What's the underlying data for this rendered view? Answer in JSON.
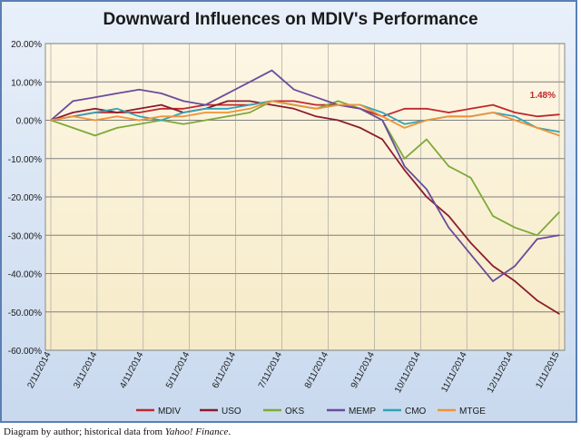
{
  "chart_data": {
    "type": "line",
    "title": "Downward Influences on MDIV's Performance",
    "xlabel": "",
    "ylabel": "",
    "ylim": [
      -0.6,
      0.2
    ],
    "y_ticks": [
      "20.00%",
      "10.00%",
      "0.00%",
      "-10.00%",
      "-20.00%",
      "-30.00%",
      "-40.00%",
      "-50.00%",
      "-60.00%"
    ],
    "y_tick_values": [
      0.2,
      0.1,
      0.0,
      -0.1,
      -0.2,
      -0.3,
      -0.4,
      -0.5,
      -0.6
    ],
    "x_ticks": [
      "2/11/2014",
      "3/11/2014",
      "4/11/2014",
      "5/11/2014",
      "6/11/2014",
      "7/11/2014",
      "8/11/2014",
      "9/11/2014",
      "10/11/2014",
      "11/11/2014",
      "12/11/2014",
      "1/11/2015"
    ],
    "grid": true,
    "legend_position": "bottom",
    "annotation": {
      "text": "1.48%",
      "series": "MDIV",
      "color": "#c0282d"
    },
    "x": [
      "2/11/2014",
      "2/25/2014",
      "3/11/2014",
      "3/25/2014",
      "4/11/2014",
      "4/25/2014",
      "5/11/2014",
      "5/25/2014",
      "6/11/2014",
      "6/25/2014",
      "7/11/2014",
      "7/25/2014",
      "8/11/2014",
      "8/25/2014",
      "9/11/2014",
      "9/25/2014",
      "10/11/2014",
      "10/25/2014",
      "11/11/2014",
      "11/25/2014",
      "12/11/2014",
      "12/25/2014",
      "1/11/2015",
      "1/25/2015"
    ],
    "series": [
      {
        "name": "MDIV",
        "color": "#c0282d",
        "values": [
          0.0,
          0.01,
          0.02,
          0.02,
          0.02,
          0.03,
          0.03,
          0.04,
          0.04,
          0.04,
          0.05,
          0.05,
          0.04,
          0.04,
          0.03,
          0.01,
          0.03,
          0.03,
          0.02,
          0.03,
          0.04,
          0.02,
          0.01,
          0.0148
        ]
      },
      {
        "name": "USO",
        "color": "#8b1c2e",
        "values": [
          0.0,
          0.02,
          0.03,
          0.02,
          0.03,
          0.04,
          0.02,
          0.03,
          0.05,
          0.05,
          0.04,
          0.03,
          0.01,
          0.0,
          -0.02,
          -0.05,
          -0.13,
          -0.2,
          -0.25,
          -0.32,
          -0.38,
          -0.42,
          -0.47,
          -0.505
        ]
      },
      {
        "name": "OKS",
        "color": "#7daa3a",
        "values": [
          0.0,
          -0.02,
          -0.04,
          -0.02,
          -0.01,
          0.0,
          -0.01,
          0.0,
          0.01,
          0.02,
          0.05,
          0.04,
          0.03,
          0.05,
          0.03,
          0.0,
          -0.1,
          -0.05,
          -0.12,
          -0.15,
          -0.25,
          -0.28,
          -0.3,
          -0.24
        ]
      },
      {
        "name": "MEMP",
        "color": "#6a4c9c",
        "values": [
          0.0,
          0.05,
          0.06,
          0.07,
          0.08,
          0.07,
          0.05,
          0.04,
          0.07,
          0.1,
          0.13,
          0.08,
          0.06,
          0.04,
          0.03,
          0.0,
          -0.12,
          -0.18,
          -0.28,
          -0.35,
          -0.42,
          -0.38,
          -0.31,
          -0.3
        ]
      },
      {
        "name": "CMO",
        "color": "#31a3b7",
        "values": [
          0.0,
          0.01,
          0.02,
          0.03,
          0.01,
          0.0,
          0.02,
          0.03,
          0.03,
          0.04,
          0.05,
          0.04,
          0.03,
          0.04,
          0.04,
          0.02,
          -0.01,
          0.0,
          0.01,
          0.01,
          0.02,
          0.01,
          -0.02,
          -0.03
        ]
      },
      {
        "name": "MTGE",
        "color": "#f0923a",
        "values": [
          0.0,
          0.01,
          0.0,
          0.01,
          0.0,
          0.01,
          0.01,
          0.02,
          0.02,
          0.03,
          0.05,
          0.04,
          0.03,
          0.04,
          0.04,
          0.01,
          -0.02,
          0.0,
          0.01,
          0.01,
          0.02,
          0.0,
          -0.02,
          -0.04
        ]
      }
    ]
  },
  "caption": {
    "prefix": "Diagram by author; historical data from ",
    "source": "Yahoo! Finance",
    "suffix": "."
  }
}
